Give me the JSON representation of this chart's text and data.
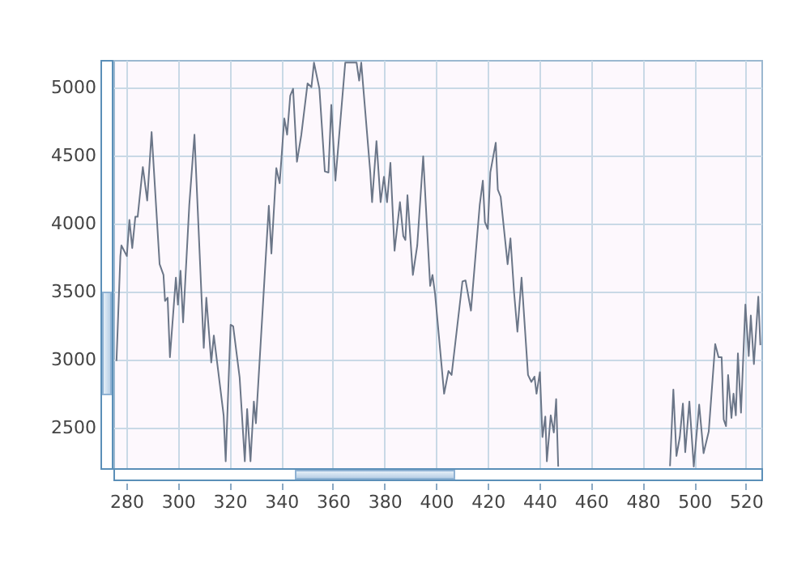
{
  "chart_data": {
    "type": "line",
    "xlim": [
      275,
      526
    ],
    "xticks": [
      280,
      300,
      320,
      340,
      360,
      380,
      400,
      420,
      440,
      460,
      480,
      500,
      520
    ],
    "ylim": [
      2200,
      5200
    ],
    "yticks": [
      2500,
      3000,
      3500,
      4000,
      4500,
      5000
    ],
    "grid": true,
    "marker": "none",
    "line_style": "solid",
    "series": [
      {
        "color": "#6b7688",
        "x": [
          276.2,
          277.7,
          278.1,
          280.2,
          281.2,
          282.3,
          283.5,
          284.4,
          286.4,
          288.1,
          289.8,
          292.9,
          294.4,
          295,
          296,
          296.9,
          299.2,
          300,
          301,
          302,
          304.4,
          306.4,
          310,
          311,
          312.9,
          313.9,
          317.7,
          318.5,
          320.4,
          321.4,
          323.9,
          325.9,
          326.8,
          328.1,
          329.4,
          330.2,
          335.2,
          336.2,
          338.1,
          339.4,
          341.2,
          342.3,
          343.5,
          344.6,
          346.1,
          347.8,
          350.2,
          351.7,
          352.7,
          354.8,
          356.9,
          358.3,
          359.4,
          361,
          364.8,
          369.2,
          370.2,
          371,
          374.5,
          375.2,
          376.9,
          378.5,
          379.8,
          381,
          382.3,
          383.9,
          386,
          387.3,
          388.1,
          388.9,
          391,
          392.7,
          395,
          397.7,
          398.6,
          399.6,
          403.1,
          404.8,
          406,
          410.2,
          411.4,
          413.5,
          416.9,
          418.1,
          418.9,
          420,
          421,
          423.1,
          423.9,
          425,
          427.7,
          428.8,
          430.2,
          431.5,
          433.1,
          435.6,
          436.9,
          438.1,
          438.9,
          440.2,
          441.2,
          442.3,
          442.9,
          444.4,
          445.6,
          446.5,
          447.3,
          470,
          490.6,
          491.9,
          493.1,
          494.4,
          495.6,
          496.5,
          498.1,
          499.8,
          501.9,
          503.6,
          505.6,
          508.1,
          509.4,
          510.6,
          511.4,
          512.3,
          513.1,
          514.4,
          515.2,
          516.1,
          516.9,
          518.1,
          519.8,
          521.1,
          521.9,
          523.1,
          524.8,
          525.6
        ],
        "values": [
          2988,
          3759,
          3837,
          3759,
          4024,
          3818,
          4048,
          4048,
          4413,
          4167,
          4670,
          3699,
          3620,
          3429,
          3453,
          3016,
          3600,
          3402,
          3651,
          3271,
          4135,
          4651,
          3084,
          3453,
          2977,
          3175,
          2588,
          2251,
          3254,
          3242,
          2866,
          2251,
          2635,
          2251,
          2690,
          2530,
          4128,
          3778,
          4405,
          4294,
          4770,
          4651,
          4937,
          4988,
          4452,
          4651,
          5027,
          5000,
          5180,
          4988,
          4381,
          4373,
          4869,
          4313,
          5180,
          5180,
          5048,
          5180,
          4373,
          4155,
          4604,
          4155,
          4342,
          4155,
          4444,
          3798,
          4155,
          3905,
          3877,
          4206,
          3620,
          3837,
          4492,
          3540,
          3620,
          3480,
          2747,
          2914,
          2885,
          3572,
          3580,
          3358,
          4135,
          4313,
          4009,
          3958,
          4373,
          4592,
          4247,
          4194,
          3699,
          3889,
          3492,
          3203,
          3600,
          2885,
          2834,
          2873,
          2747,
          2906,
          2429,
          2580,
          2251,
          2588,
          2462,
          2707,
          2212,
          null,
          2215,
          2778,
          2290,
          2429,
          2675,
          2318,
          2690,
          2212,
          2667,
          2310,
          2469,
          3112,
          3016,
          3016,
          2557,
          2509,
          2885,
          2569,
          2747,
          2588,
          3044,
          2608,
          3402,
          3024,
          3322,
          2965,
          3461,
          3104
        ]
      }
    ]
  }
}
